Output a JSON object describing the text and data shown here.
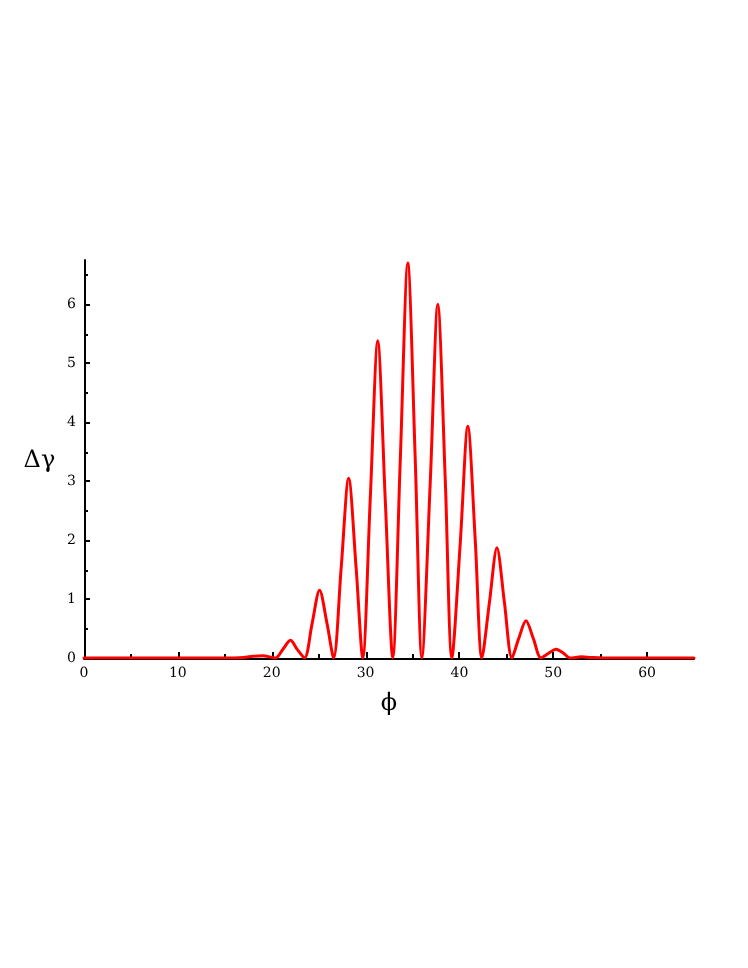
{
  "chart_data": {
    "type": "line",
    "xlabel": "ϕ",
    "ylabel": "Δγ",
    "xlim": [
      0,
      65
    ],
    "ylim": [
      0,
      6.75
    ],
    "xticks": [
      0,
      10,
      20,
      30,
      40,
      50,
      60
    ],
    "yticks": [
      0,
      1,
      2,
      3,
      4,
      5,
      6
    ],
    "marker": "none",
    "line_style": "solid",
    "series": [
      {
        "color": "#ff0000",
        "x": [
          0,
          10,
          15,
          17,
          18,
          19,
          20.4,
          21.2,
          22,
          22.7,
          23.5,
          24.3,
          25.1,
          25.9,
          26.6,
          27.4,
          28.2,
          29,
          29.7,
          30.5,
          31.3,
          32.1,
          32.9,
          33.7,
          34.5,
          35.3,
          36,
          36.9,
          37.7,
          38.5,
          39.2,
          40.1,
          40.9,
          41.7,
          42.4,
          43.2,
          44,
          44.8,
          45.6,
          46.3,
          47.1,
          47.9,
          48.7,
          49.5,
          50.3,
          51.1,
          51.8,
          53,
          54,
          56,
          65
        ],
        "values": [
          0,
          0,
          0,
          0.01,
          0.03,
          0.04,
          0,
          0.15,
          0.3,
          0.15,
          0,
          0.58,
          1.15,
          0.58,
          0,
          1.52,
          3.05,
          1.52,
          0,
          2.69,
          5.38,
          2.69,
          0,
          3.35,
          6.7,
          3.35,
          0,
          3,
          6,
          3,
          0,
          1.97,
          3.93,
          1.97,
          0,
          0.94,
          1.87,
          0.94,
          0,
          0.32,
          0.63,
          0.32,
          0,
          0.08,
          0.15,
          0.08,
          0,
          0.02,
          0.01,
          0,
          0
        ]
      }
    ]
  }
}
